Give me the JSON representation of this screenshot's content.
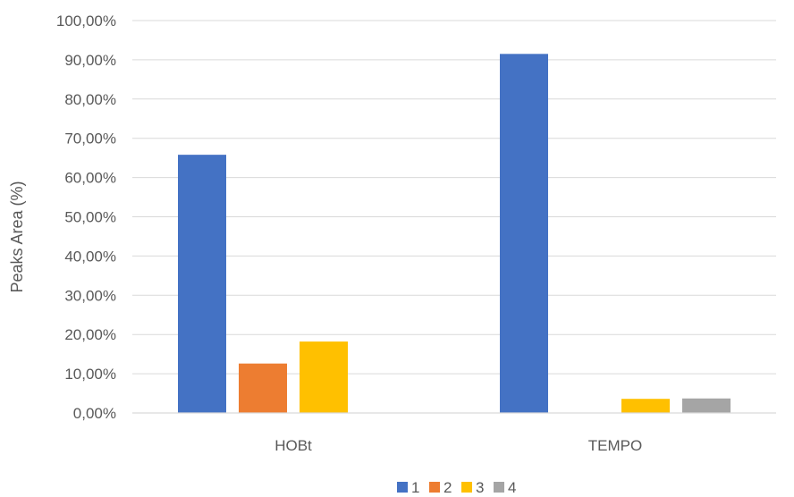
{
  "chart_data": {
    "type": "bar",
    "categories": [
      "HOBt",
      "TEMPO"
    ],
    "series": [
      {
        "name": "1",
        "color": "#4472C4",
        "values": [
          65.8,
          91.5
        ]
      },
      {
        "name": "2",
        "color": "#ED7D31",
        "values": [
          12.6,
          0.0
        ]
      },
      {
        "name": "3",
        "color": "#FFC000",
        "values": [
          18.2,
          3.6
        ]
      },
      {
        "name": "4",
        "color": "#A5A5A5",
        "values": [
          null,
          3.7
        ]
      }
    ],
    "ylabel": "Peaks Area (%)",
    "xlabel": "",
    "ylim": [
      0,
      100
    ],
    "yticks": [
      "0,00%",
      "10,00%",
      "20,00%",
      "30,00%",
      "40,00%",
      "50,00%",
      "60,00%",
      "70,00%",
      "80,00%",
      "90,00%",
      "100,00%"
    ],
    "grid": true,
    "legend_position": "bottom"
  }
}
